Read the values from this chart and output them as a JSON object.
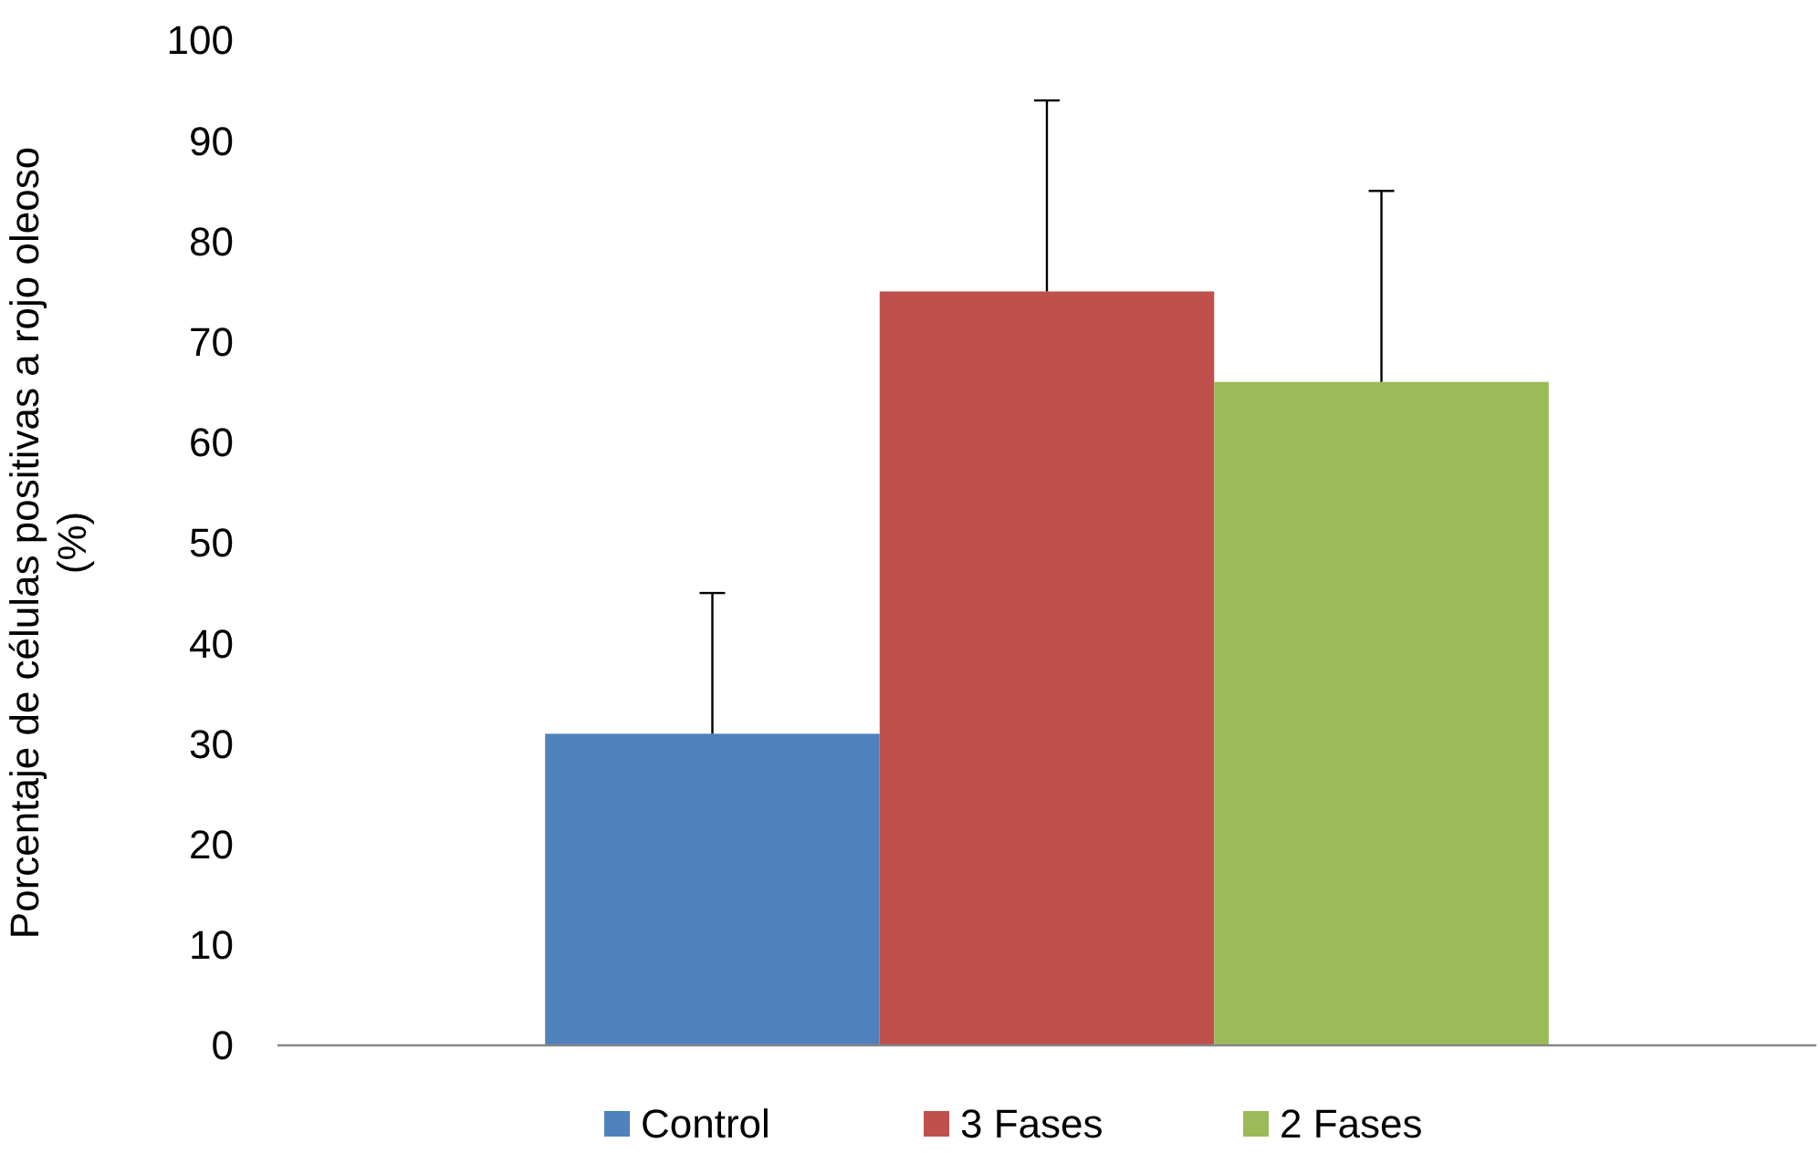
{
  "chart_data": {
    "type": "bar",
    "ylabel": "Porcentaje de células positivas a rojo oleoso (%)",
    "categories": [
      null
    ],
    "series": [
      {
        "name": "Control",
        "color": "#4f81bd",
        "values": [
          31
        ],
        "errors": [
          [
            31,
            45
          ]
        ]
      },
      {
        "name": "3 Fases",
        "color": "#c0504d",
        "values": [
          75
        ],
        "errors": [
          [
            75,
            94
          ]
        ]
      },
      {
        "name": "2 Fases",
        "color": "#9bbb59",
        "values": [
          66
        ],
        "errors": [
          [
            66,
            85
          ]
        ]
      }
    ],
    "ylim": [
      0,
      100
    ],
    "yticks": [
      0,
      10,
      20,
      30,
      40,
      50,
      60,
      70,
      80,
      90,
      100
    ],
    "grid": false,
    "legend": "bottom"
  }
}
